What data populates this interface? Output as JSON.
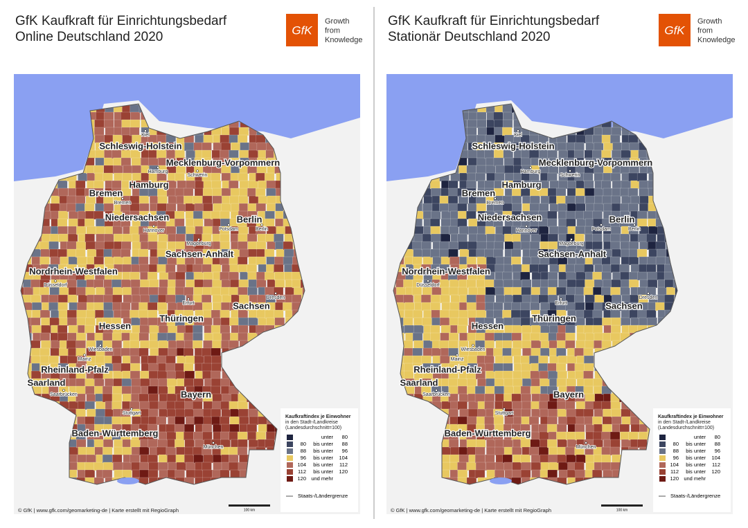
{
  "panels": [
    {
      "title": [
        "GfK Kaufkraft für Einrichtungsbedarf",
        "Online Deutschland 2020"
      ],
      "logo": {
        "mark": "GfK",
        "tagline": [
          "Growth",
          "from",
          "Knowledge"
        ]
      },
      "states": [
        "Schleswig-Holstein",
        "Mecklenburg-Vorpommern",
        "Bremen",
        "Hamburg",
        "Niedersachsen",
        "Berlin",
        "Sachsen-Anhalt",
        "Nordrhein-Westfalen",
        "Sachsen",
        "Hessen",
        "Thüringen",
        "Rheinland-Pfalz",
        "Saarland",
        "Bayern",
        "Baden-Württemberg"
      ],
      "cities": [
        "Kiel",
        "Hamburg",
        "Schwerin",
        "Bremen",
        "Hannover",
        "Potsdam",
        "Berlin",
        "Magdeburg",
        "Düsseldorf",
        "Erfurt",
        "Dresden",
        "Wiesbaden",
        "Mainz",
        "Saarbrücken",
        "Stuttgart",
        "München"
      ],
      "legend": {
        "title": [
          "Kaufkraftindex je Einwohner",
          "in den Stadt-/Landkreise",
          "(Landesdurchschnitt=100)"
        ],
        "rows": [
          {
            "color": "#1e2440",
            "text": "unter",
            "to": 80
          },
          {
            "color": "#3c4560",
            "from": 80,
            "text": "bis unter",
            "to": 88
          },
          {
            "color": "#6a7388",
            "from": 88,
            "text": "bis unter",
            "to": 96
          },
          {
            "color": "#e8c860",
            "from": 96,
            "text": "bis unter",
            "to": 104
          },
          {
            "color": "#b0675a",
            "from": 104,
            "text": "bis unter",
            "to": 112
          },
          {
            "color": "#9a4234",
            "from": 112,
            "text": "bis unter",
            "to": 120
          },
          {
            "color": "#6e1a14",
            "from": 120,
            "text": "und mehr"
          }
        ],
        "border": "Staats-/Ländergrenze"
      },
      "footer": "© GfK | www.gfk.com/geomarketing-de | Karte erstellt mit RegioGraph",
      "scale": "100 km"
    },
    {
      "title": [
        "GfK Kaufkraft für Einrichtungsbedarf",
        "Stationär Deutschland 2020"
      ],
      "logo": {
        "mark": "GfK",
        "tagline": [
          "Growth",
          "from",
          "Knowledge"
        ]
      },
      "states": [
        "Schleswig-Holstein",
        "Mecklenburg-Vorpommern",
        "Bremen",
        "Hamburg",
        "Niedersachsen",
        "Berlin",
        "Sachsen-Anhalt",
        "Nordrhein-Westfalen",
        "Sachsen",
        "Hessen",
        "Thüringen",
        "Rheinland-Pfalz",
        "Saarland",
        "Bayern",
        "Baden-Württemberg"
      ],
      "cities": [
        "Kiel",
        "Hamburg",
        "Schwerin",
        "Bremen",
        "Hannover",
        "Potsdam",
        "Berlin",
        "Magdeburg",
        "Düsseldorf",
        "Erfurt",
        "Dresden",
        "Wiesbaden",
        "Mainz",
        "Saarbrücken",
        "Stuttgart",
        "München"
      ],
      "legend": {
        "title": [
          "Kaufkraftindex je Einwohner",
          "in den Stadt-/Landkreise",
          "(Landesdurchschnitt=100)"
        ],
        "rows": [
          {
            "color": "#1e2440",
            "text": "unter",
            "to": 80
          },
          {
            "color": "#3c4560",
            "from": 80,
            "text": "bis unter",
            "to": 88
          },
          {
            "color": "#6a7388",
            "from": 88,
            "text": "bis unter",
            "to": 96
          },
          {
            "color": "#e8c860",
            "from": 96,
            "text": "bis unter",
            "to": 104
          },
          {
            "color": "#b0675a",
            "from": 104,
            "text": "bis unter",
            "to": 112
          },
          {
            "color": "#9a4234",
            "from": 112,
            "text": "bis unter",
            "to": 120
          },
          {
            "color": "#6e1a14",
            "from": 120,
            "text": "und mehr"
          }
        ],
        "border": "Staats-/Ländergrenze"
      },
      "footer": "© GfK | www.gfk.com/geomarketing-de | Karte erstellt mit RegioGraph",
      "scale": "100 km"
    }
  ]
}
